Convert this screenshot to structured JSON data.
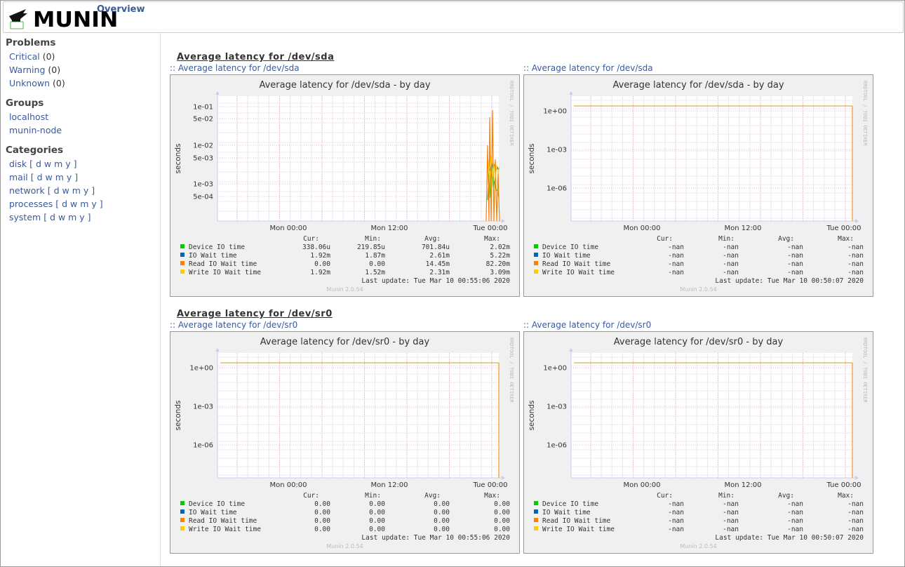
{
  "header": {
    "logo_text": "MUNIN",
    "logo_subtext": "Munin",
    "crumb": "Overview"
  },
  "sidebar": {
    "problems_title": "Problems",
    "problems": [
      {
        "label": "Critical",
        "count": "(0)"
      },
      {
        "label": "Warning",
        "count": "(0)"
      },
      {
        "label": "Unknown",
        "count": "(0)"
      }
    ],
    "groups_title": "Groups",
    "groups": [
      "localhost",
      "munin-node"
    ],
    "categories_title": "Categories",
    "categories": [
      {
        "label": "disk",
        "periods": "[ d w m y ]"
      },
      {
        "label": "mail",
        "periods": "[ d w m y ]"
      },
      {
        "label": "network",
        "periods": "[ d w m y ]"
      },
      {
        "label": "processes",
        "periods": "[ d w m y ]"
      },
      {
        "label": "system",
        "periods": "[ d w m y ]"
      }
    ]
  },
  "sections": [
    {
      "title": "Average latency for /dev/sda",
      "graphs": [
        {
          "link_prefix": "::",
          "link_text": "Average latency for /dev/sda",
          "chart_title": "Average latency for /dev/sda - by day",
          "ylabel": "seconds",
          "side_label": "RRDTOOL / TOBI OETIKER",
          "y_ticks": [
            "1e-01",
            "5e-02",
            "1e-02",
            "5e-03",
            "1e-03",
            "5e-04"
          ],
          "x_ticks": [
            "Mon 00:00",
            "Mon 12:00",
            "Tue 00:00"
          ],
          "has_data": true,
          "legend_header": [
            "Cur:",
            "Min:",
            "Avg:",
            "Max:"
          ],
          "rows": [
            {
              "name": "Device IO time",
              "color": "#00cc00",
              "cur": "338.06u",
              "min": "219.85u",
              "avg": "701.84u",
              "max": "2.02m"
            },
            {
              "name": "IO Wait time",
              "color": "#0066b3",
              "cur": "1.92m",
              "min": "1.87m",
              "avg": "2.61m",
              "max": "5.22m"
            },
            {
              "name": "Read IO Wait time",
              "color": "#ff8000",
              "cur": "0.00",
              "min": "0.00",
              "avg": "14.45m",
              "max": "82.20m"
            },
            {
              "name": "Write IO Wait time",
              "color": "#ffcc00",
              "cur": "1.92m",
              "min": "1.52m",
              "avg": "2.31m",
              "max": "3.09m"
            }
          ],
          "last_update": "Last update: Tue Mar 10 00:55:06 2020",
          "version": "Munin 2.0.54"
        },
        {
          "link_prefix": "::",
          "link_text": "Average latency for /dev/sda",
          "chart_title": "Average latency for /dev/sda - by day",
          "ylabel": "seconds",
          "side_label": "RRDTOOL / TOBI OETIKER",
          "y_ticks": [
            "1e+00",
            "1e-03",
            "1e-06"
          ],
          "x_ticks": [
            "Mon 00:00",
            "Mon 12:00",
            "Tue 00:00"
          ],
          "has_data": false,
          "legend_header": [
            "Cur:",
            "Min:",
            "Avg:",
            "Max:"
          ],
          "rows": [
            {
              "name": "Device IO time",
              "color": "#00cc00",
              "cur": "-nan",
              "min": "-nan",
              "avg": "-nan",
              "max": "-nan"
            },
            {
              "name": "IO Wait time",
              "color": "#0066b3",
              "cur": "-nan",
              "min": "-nan",
              "avg": "-nan",
              "max": "-nan"
            },
            {
              "name": "Read IO Wait time",
              "color": "#ff8000",
              "cur": "-nan",
              "min": "-nan",
              "avg": "-nan",
              "max": "-nan"
            },
            {
              "name": "Write IO Wait time",
              "color": "#ffcc00",
              "cur": "-nan",
              "min": "-nan",
              "avg": "-nan",
              "max": "-nan"
            }
          ],
          "last_update": "Last update: Tue Mar 10 00:50:07 2020",
          "version": "Munin 2.0.54"
        }
      ]
    },
    {
      "title": "Average latency for /dev/sr0",
      "graphs": [
        {
          "link_prefix": "::",
          "link_text": "Average latency for /dev/sr0",
          "chart_title": "Average latency for /dev/sr0 - by day",
          "ylabel": "seconds",
          "side_label": "RRDTOOL / TOBI OETIKER",
          "y_ticks": [
            "1e+00",
            "1e-03",
            "1e-06"
          ],
          "x_ticks": [
            "Mon 00:00",
            "Mon 12:00",
            "Tue 00:00"
          ],
          "has_data": false,
          "legend_header": [
            "Cur:",
            "Min:",
            "Avg:",
            "Max:"
          ],
          "rows": [
            {
              "name": "Device IO time",
              "color": "#00cc00",
              "cur": "0.00",
              "min": "0.00",
              "avg": "0.00",
              "max": "0.00"
            },
            {
              "name": "IO Wait time",
              "color": "#0066b3",
              "cur": "0.00",
              "min": "0.00",
              "avg": "0.00",
              "max": "0.00"
            },
            {
              "name": "Read IO Wait time",
              "color": "#ff8000",
              "cur": "0.00",
              "min": "0.00",
              "avg": "0.00",
              "max": "0.00"
            },
            {
              "name": "Write IO Wait time",
              "color": "#ffcc00",
              "cur": "0.00",
              "min": "0.00",
              "avg": "0.00",
              "max": "0.00"
            }
          ],
          "last_update": "Last update: Tue Mar 10 00:55:06 2020",
          "version": "Munin 2.0.54"
        },
        {
          "link_prefix": "::",
          "link_text": "Average latency for /dev/sr0",
          "chart_title": "Average latency for /dev/sr0 - by day",
          "ylabel": "seconds",
          "side_label": "RRDTOOL / TOBI OETIKER",
          "y_ticks": [
            "1e+00",
            "1e-03",
            "1e-06"
          ],
          "x_ticks": [
            "Mon 00:00",
            "Mon 12:00",
            "Tue 00:00"
          ],
          "has_data": false,
          "legend_header": [
            "Cur:",
            "Min:",
            "Avg:",
            "Max:"
          ],
          "rows": [
            {
              "name": "Device IO time",
              "color": "#00cc00",
              "cur": "-nan",
              "min": "-nan",
              "avg": "-nan",
              "max": "-nan"
            },
            {
              "name": "IO Wait time",
              "color": "#0066b3",
              "cur": "-nan",
              "min": "-nan",
              "avg": "-nan",
              "max": "-nan"
            },
            {
              "name": "Read IO Wait time",
              "color": "#ff8000",
              "cur": "-nan",
              "min": "-nan",
              "avg": "-nan",
              "max": "-nan"
            },
            {
              "name": "Write IO Wait time",
              "color": "#ffcc00",
              "cur": "-nan",
              "min": "-nan",
              "avg": "-nan",
              "max": "-nan"
            }
          ],
          "last_update": "Last update: Tue Mar 10 00:50:07 2020",
          "version": "Munin 2.0.54"
        }
      ]
    }
  ]
}
